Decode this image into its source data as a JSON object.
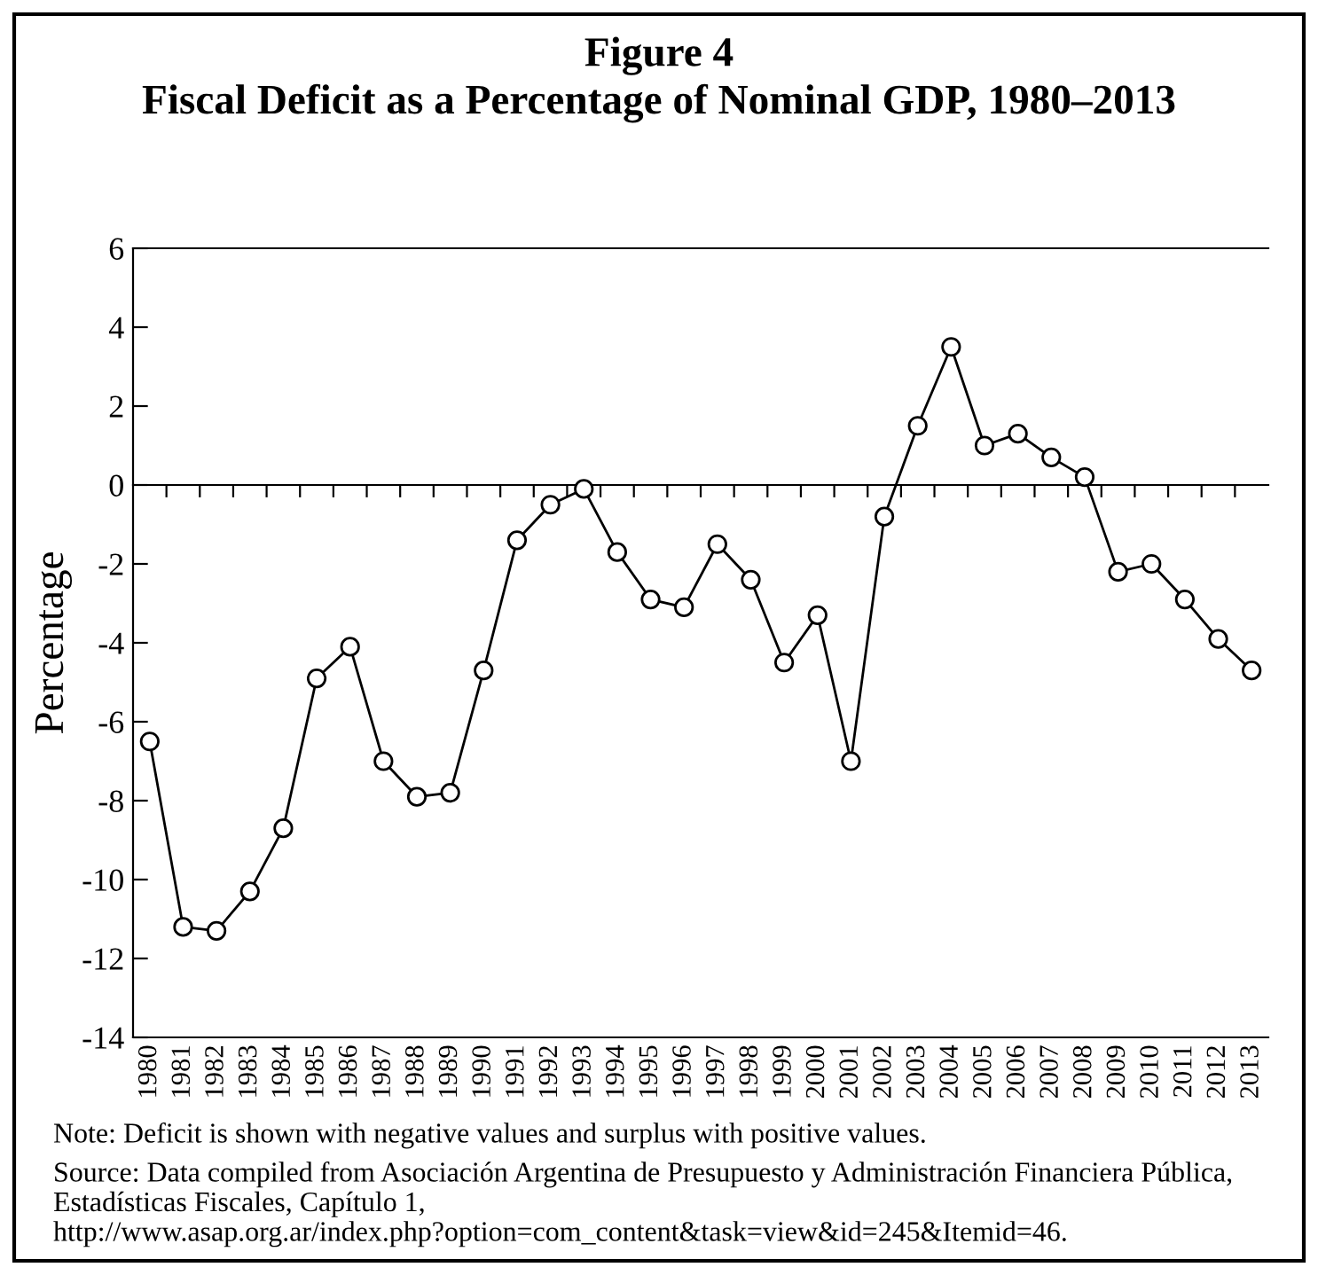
{
  "chart_data": {
    "type": "line",
    "title": "Figure 4\nFiscal Deficit as a Percentage of Nominal GDP, 1980–2013",
    "ylabel": "Percentage",
    "categories": [
      "1980",
      "1981",
      "1982",
      "1983",
      "1984",
      "1985",
      "1986",
      "1987",
      "1988",
      "1989",
      "1990",
      "1991",
      "1992",
      "1993",
      "1994",
      "1995",
      "1996",
      "1997",
      "1998",
      "1999",
      "2000",
      "2001",
      "2002",
      "2003",
      "2004",
      "2005",
      "2006",
      "2007",
      "2008",
      "2009",
      "2010",
      "2011",
      "2012",
      "2013"
    ],
    "series": [
      {
        "color": "#000000",
        "values": [
          -6.5,
          -11.2,
          -11.3,
          -10.3,
          -8.7,
          -4.9,
          -4.1,
          -7.0,
          -7.9,
          -7.8,
          -4.7,
          -1.4,
          -0.5,
          -0.1,
          -1.7,
          -2.9,
          -3.1,
          -1.5,
          -2.4,
          -4.5,
          -3.3,
          -7.0,
          -0.8,
          1.5,
          3.5,
          1.0,
          1.3,
          0.7,
          0.2,
          -2.2,
          -2.0,
          -2.9,
          -3.9,
          -4.7
        ]
      }
    ],
    "ylim": [
      -14,
      6
    ],
    "yticks": [
      -14,
      -12,
      -10,
      -8,
      -6,
      -4,
      -2,
      0,
      2,
      4,
      6
    ],
    "ref_lines": [
      {
        "axis": "y",
        "value": 0
      }
    ],
    "marker": "circle",
    "line_style": "solid",
    "grid": false,
    "legend": false,
    "annotations": [
      "Note: Deficit is shown with negative values and surplus with positive values.",
      "Source: Data compiled from Asociación Argentina de Presupuesto y Administración Financiera Pública, Estadísticas Fiscales, Capítulo 1, http://www.asap.org.ar/index.php?option=com_content&task=view&id=245&Itemid=46."
    ]
  }
}
